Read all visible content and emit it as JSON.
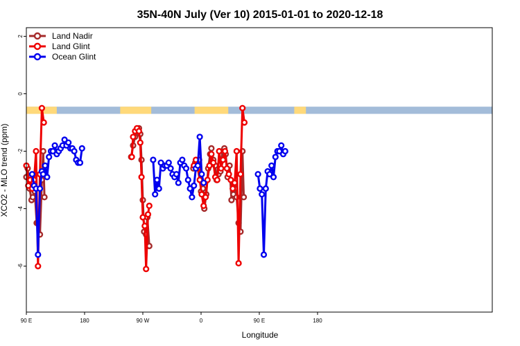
{
  "chart_data": {
    "type": "line",
    "title": "35N-40N July (Ver 10)   2015-01-01 to 2020-12-18",
    "xlabel": "Longitude",
    "ylabel": "XCO2 - MLO trend (ppm)",
    "xlim": [
      90,
      810
    ],
    "ylim": [
      -7.6,
      2.3
    ],
    "x_ticks": [
      {
        "value": 90,
        "label": "90 E"
      },
      {
        "value": 180,
        "label": "180"
      },
      {
        "value": 270,
        "label": "90 W"
      },
      {
        "value": 360,
        "label": "0"
      },
      {
        "value": 450,
        "label": "90 E"
      },
      {
        "value": 540,
        "label": "180"
      }
    ],
    "y_ticks": [
      {
        "value": 2,
        "label": "2"
      },
      {
        "value": 0,
        "label": "0"
      },
      {
        "value": -2,
        "label": "-2"
      },
      {
        "value": -4,
        "label": "-4"
      },
      {
        "value": -6,
        "label": "-6"
      }
    ],
    "grid": false,
    "legend_position": "top-left",
    "land_ocean_band": {
      "y_range": [
        -0.7,
        -0.45
      ],
      "land_color": "#ffd97a",
      "ocean_color": "#a3bcd9",
      "land_segments": [
        [
          90,
          137
        ],
        [
          235,
          283
        ],
        [
          350,
          402
        ],
        [
          504,
          522
        ]
      ]
    },
    "series": [
      {
        "name": "Land Nadir",
        "color": "#a52a2a",
        "points": [
          [
            90,
            -2.9
          ],
          [
            92,
            -2.6
          ],
          [
            95,
            -3.3
          ],
          [
            98,
            -3.7
          ],
          [
            100,
            -3.6
          ],
          [
            103,
            -3.4
          ],
          [
            106,
            -4.5
          ],
          [
            108,
            -4.5
          ],
          [
            111,
            -4.9
          ],
          [
            114,
            -3.0
          ],
          [
            116,
            -2.0
          ],
          [
            118,
            -3.6
          ],
          [
            null,
            null
          ],
          [
            252,
            -2.2
          ],
          [
            255,
            -1.8
          ],
          [
            258,
            -1.5
          ],
          [
            261,
            -1.3
          ],
          [
            264,
            -1.2
          ],
          [
            266,
            -1.4
          ],
          [
            268,
            -2.3
          ],
          [
            270,
            -3.7
          ],
          [
            272,
            -4.8
          ],
          [
            275,
            -4.9
          ],
          [
            277,
            -4.3
          ],
          [
            280,
            -5.3
          ],
          [
            null,
            null
          ],
          [
            348,
            -2.6
          ],
          [
            351,
            -2.4
          ],
          [
            354,
            -2.5
          ],
          [
            357,
            -2.3
          ],
          [
            360,
            -3.4
          ],
          [
            363,
            -3.3
          ],
          [
            365,
            -4.0
          ],
          [
            368,
            -3.5
          ],
          [
            371,
            -2.6
          ],
          [
            374,
            -2.1
          ],
          [
            376,
            -1.9
          ],
          [
            379,
            -2.3
          ],
          [
            382,
            -2.5
          ],
          [
            384,
            -3.0
          ],
          [
            387,
            -2.8
          ],
          [
            390,
            -2.7
          ],
          [
            393,
            -2.0
          ],
          [
            396,
            -1.9
          ],
          [
            398,
            -2.1
          ],
          [
            401,
            -2.9
          ],
          [
            404,
            -2.5
          ],
          [
            407,
            -3.7
          ],
          [
            410,
            -3.5
          ],
          [
            412,
            -3.3
          ],
          [
            415,
            -3.6
          ],
          [
            418,
            -4.5
          ],
          [
            421,
            -4.8
          ],
          [
            424,
            -2.0
          ],
          [
            426,
            -3.6
          ]
        ]
      },
      {
        "name": "Land Glint",
        "color": "#ee0000",
        "points": [
          [
            90,
            -2.5
          ],
          [
            93,
            -3.2
          ],
          [
            96,
            -3.0
          ],
          [
            99,
            -3.3
          ],
          [
            102,
            -3.0
          ],
          [
            105,
            -2.0
          ],
          [
            108,
            -6.0
          ],
          [
            111,
            -2.8
          ],
          [
            114,
            -0.5
          ],
          [
            117,
            -1.0
          ],
          [
            null,
            null
          ],
          [
            253,
            -2.2
          ],
          [
            255,
            -1.5
          ],
          [
            258,
            -1.3
          ],
          [
            261,
            -1.2
          ],
          [
            264,
            -1.3
          ],
          [
            266,
            -1.7
          ],
          [
            268,
            -2.9
          ],
          [
            270,
            -4.3
          ],
          [
            273,
            -4.6
          ],
          [
            275,
            -6.1
          ],
          [
            278,
            -4.2
          ],
          [
            280,
            -3.9
          ],
          [
            null,
            null
          ],
          [
            349,
            -2.5
          ],
          [
            352,
            -2.3
          ],
          [
            355,
            -2.6
          ],
          [
            358,
            -3.0
          ],
          [
            361,
            -3.5
          ],
          [
            364,
            -3.9
          ],
          [
            367,
            -3.6
          ],
          [
            370,
            -3.0
          ],
          [
            373,
            -2.5
          ],
          [
            376,
            -2.1
          ],
          [
            379,
            -2.4
          ],
          [
            382,
            -2.9
          ],
          [
            385,
            -3.0
          ],
          [
            388,
            -2.0
          ],
          [
            391,
            -2.6
          ],
          [
            394,
            -2.3
          ],
          [
            397,
            -2.0
          ],
          [
            400,
            -2.6
          ],
          [
            403,
            -2.8
          ],
          [
            406,
            -3.0
          ],
          [
            409,
            -3.3
          ],
          [
            412,
            -3.1
          ],
          [
            415,
            -2.0
          ],
          [
            418,
            -5.9
          ],
          [
            421,
            -2.8
          ],
          [
            424,
            -0.5
          ],
          [
            427,
            -1.0
          ]
        ]
      },
      {
        "name": "Ocean Glint",
        "color": "#0000ee",
        "points": [
          [
            99,
            -2.8
          ],
          [
            102,
            -3.2
          ],
          [
            105,
            -3.3
          ],
          [
            108,
            -5.6
          ],
          [
            111,
            -3.3
          ],
          [
            114,
            -2.7
          ],
          [
            116,
            -2.8
          ],
          [
            119,
            -2.5
          ],
          [
            122,
            -2.9
          ],
          [
            125,
            -2.2
          ],
          [
            128,
            -2.0
          ],
          [
            131,
            -2.0
          ],
          [
            134,
            -1.8
          ],
          [
            137,
            -2.1
          ],
          [
            140,
            -2.0
          ],
          [
            143,
            -1.9
          ],
          [
            146,
            -1.8
          ],
          [
            149,
            -1.6
          ],
          [
            152,
            -1.8
          ],
          [
            155,
            -1.7
          ],
          [
            158,
            -1.9
          ],
          [
            161,
            -1.9
          ],
          [
            164,
            -2.0
          ],
          [
            167,
            -2.3
          ],
          [
            170,
            -2.4
          ],
          [
            173,
            -2.4
          ],
          [
            176,
            -1.9
          ],
          [
            null,
            null
          ],
          [
            286,
            -2.3
          ],
          [
            289,
            -3.5
          ],
          [
            292,
            -3.0
          ],
          [
            295,
            -3.3
          ],
          [
            298,
            -2.4
          ],
          [
            301,
            -2.6
          ],
          [
            304,
            -2.5
          ],
          [
            307,
            -2.5
          ],
          [
            310,
            -2.4
          ],
          [
            313,
            -2.6
          ],
          [
            316,
            -2.8
          ],
          [
            319,
            -2.9
          ],
          [
            322,
            -2.8
          ],
          [
            325,
            -3.1
          ],
          [
            328,
            -2.4
          ],
          [
            331,
            -2.3
          ],
          [
            334,
            -2.5
          ],
          [
            337,
            -2.6
          ],
          [
            340,
            -3.0
          ],
          [
            343,
            -3.3
          ],
          [
            346,
            -3.6
          ],
          [
            349,
            -3.2
          ],
          [
            352,
            -2.6
          ],
          [
            355,
            -2.5
          ],
          [
            358,
            -1.5
          ],
          [
            361,
            -2.8
          ],
          [
            364,
            -3.1
          ],
          [
            null,
            null
          ],
          [
            448,
            -2.8
          ],
          [
            451,
            -3.3
          ],
          [
            454,
            -3.5
          ],
          [
            457,
            -5.6
          ],
          [
            460,
            -3.3
          ],
          [
            463,
            -2.7
          ],
          [
            466,
            -2.8
          ],
          [
            469,
            -2.5
          ],
          [
            472,
            -2.9
          ],
          [
            475,
            -2.2
          ],
          [
            478,
            -2.0
          ],
          [
            481,
            -2.0
          ],
          [
            484,
            -1.8
          ],
          [
            487,
            -2.1
          ],
          [
            490,
            -2.0
          ]
        ]
      }
    ]
  }
}
